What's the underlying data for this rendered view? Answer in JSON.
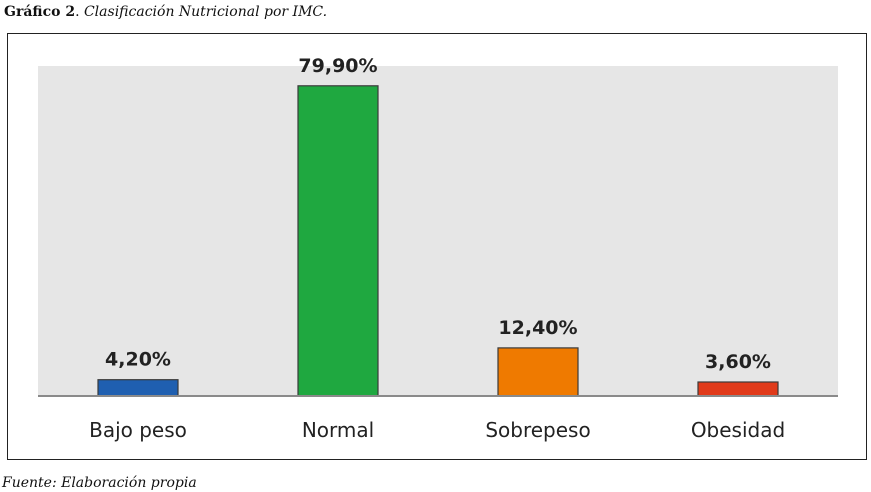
{
  "caption": {
    "label": "Gráfico 2",
    "separator": ". ",
    "text": "Clasificación Nutricional por IMC."
  },
  "source": "Fuente: Elaboración propia",
  "chart_data": {
    "type": "bar",
    "categories": [
      "Bajo peso",
      "Normal",
      "Sobrepeso",
      "Obesidad"
    ],
    "values": [
      4.2,
      79.9,
      12.4,
      3.6
    ],
    "data_labels": [
      "4,20%",
      "79,90%",
      "12,40%",
      "3,60%"
    ],
    "colors": [
      "#1f5fb0",
      "#1fa840",
      "#ef7a00",
      "#e03a1a"
    ],
    "plot_background": "#e6e6e6",
    "ylim": [
      0,
      85
    ],
    "grid": false,
    "legend": "none",
    "title": "",
    "xlabel": "",
    "ylabel": ""
  }
}
